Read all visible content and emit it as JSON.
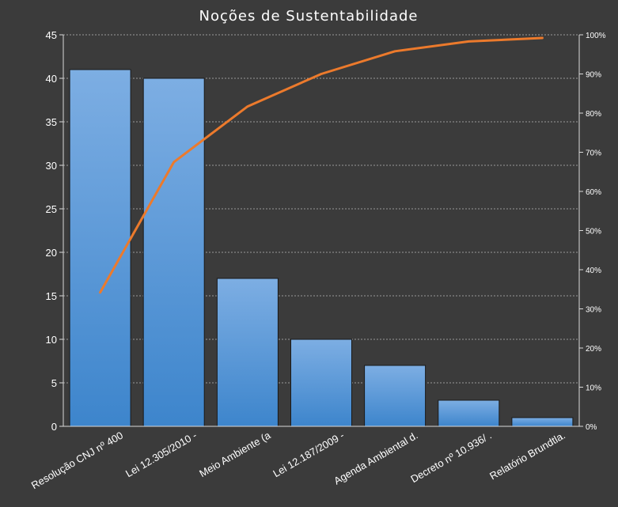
{
  "chart_data": {
    "type": "bar",
    "title": "Noções de Sustentabilidade",
    "categories": [
      "Resolução CNJ nº 400",
      "Lei 12.305/2010 -",
      "Meio Ambiente (a",
      "Lei 12.187/2009 -",
      "Agenda Ambiental d.",
      "Decreto nº 10.936/ .",
      "Relatório Brundtla."
    ],
    "series": [
      {
        "values": [
          41,
          40,
          17,
          10,
          7,
          3,
          1
        ]
      },
      {
        "type": "line",
        "axis": "right",
        "values": [
          34.2,
          67.5,
          81.7,
          90.0,
          95.8,
          98.3,
          99.2
        ]
      }
    ],
    "y_left": {
      "range": [
        0,
        45
      ],
      "ticks": [
        "0",
        "5",
        "10",
        "15",
        "20",
        "25",
        "30",
        "35",
        "40",
        "45"
      ]
    },
    "y_right": {
      "range": [
        0,
        100
      ],
      "ticks": [
        "0%",
        "10%",
        "20%",
        "30%",
        "40%",
        "50%",
        "60%",
        "70%",
        "80%",
        "90%",
        "100%"
      ]
    },
    "grid": "horizontal-dashed",
    "colors": {
      "background": "#3b3b3b",
      "plot_area": "#3d3d3d",
      "bar_top": "#7daee3",
      "bar_bottom": "#3d85cc",
      "bar_stroke": "#1a1a1a",
      "line": "#ec7a2c",
      "grid": "#9a9a9a",
      "axis": "#d9d9d9",
      "text": "#ffffff"
    }
  }
}
